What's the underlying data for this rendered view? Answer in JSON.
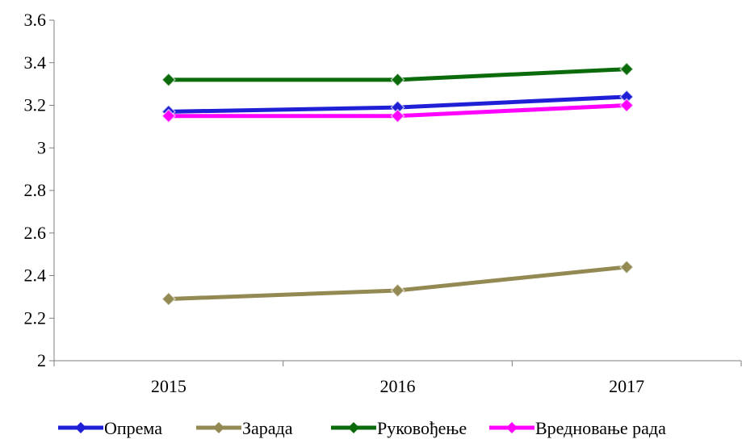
{
  "chart_data": {
    "type": "line",
    "title": "",
    "xlabel": "",
    "ylabel": "",
    "categories": [
      "2015",
      "2016",
      "2017"
    ],
    "ylim": [
      2,
      3.6
    ],
    "yticks": [
      "2",
      "2.2",
      "2.4",
      "2.6",
      "2.8",
      "3",
      "3.2",
      "3.4",
      "3.6"
    ],
    "grid": false,
    "legend_position": "bottom",
    "series": [
      {
        "name": "Опрема",
        "values": [
          3.17,
          3.19,
          3.24
        ],
        "color": "#1f1fd6",
        "marker": "diamond"
      },
      {
        "name": "Зарада",
        "values": [
          2.29,
          2.33,
          2.44
        ],
        "color": "#938953",
        "marker": "diamond"
      },
      {
        "name": "Руковођење",
        "values": [
          3.32,
          3.32,
          3.37
        ],
        "color": "#0b6b0b",
        "marker": "diamond"
      },
      {
        "name": "Вредновање рада",
        "values": [
          3.15,
          3.15,
          3.2
        ],
        "color": "#ff00ff",
        "marker": "diamond"
      }
    ]
  }
}
